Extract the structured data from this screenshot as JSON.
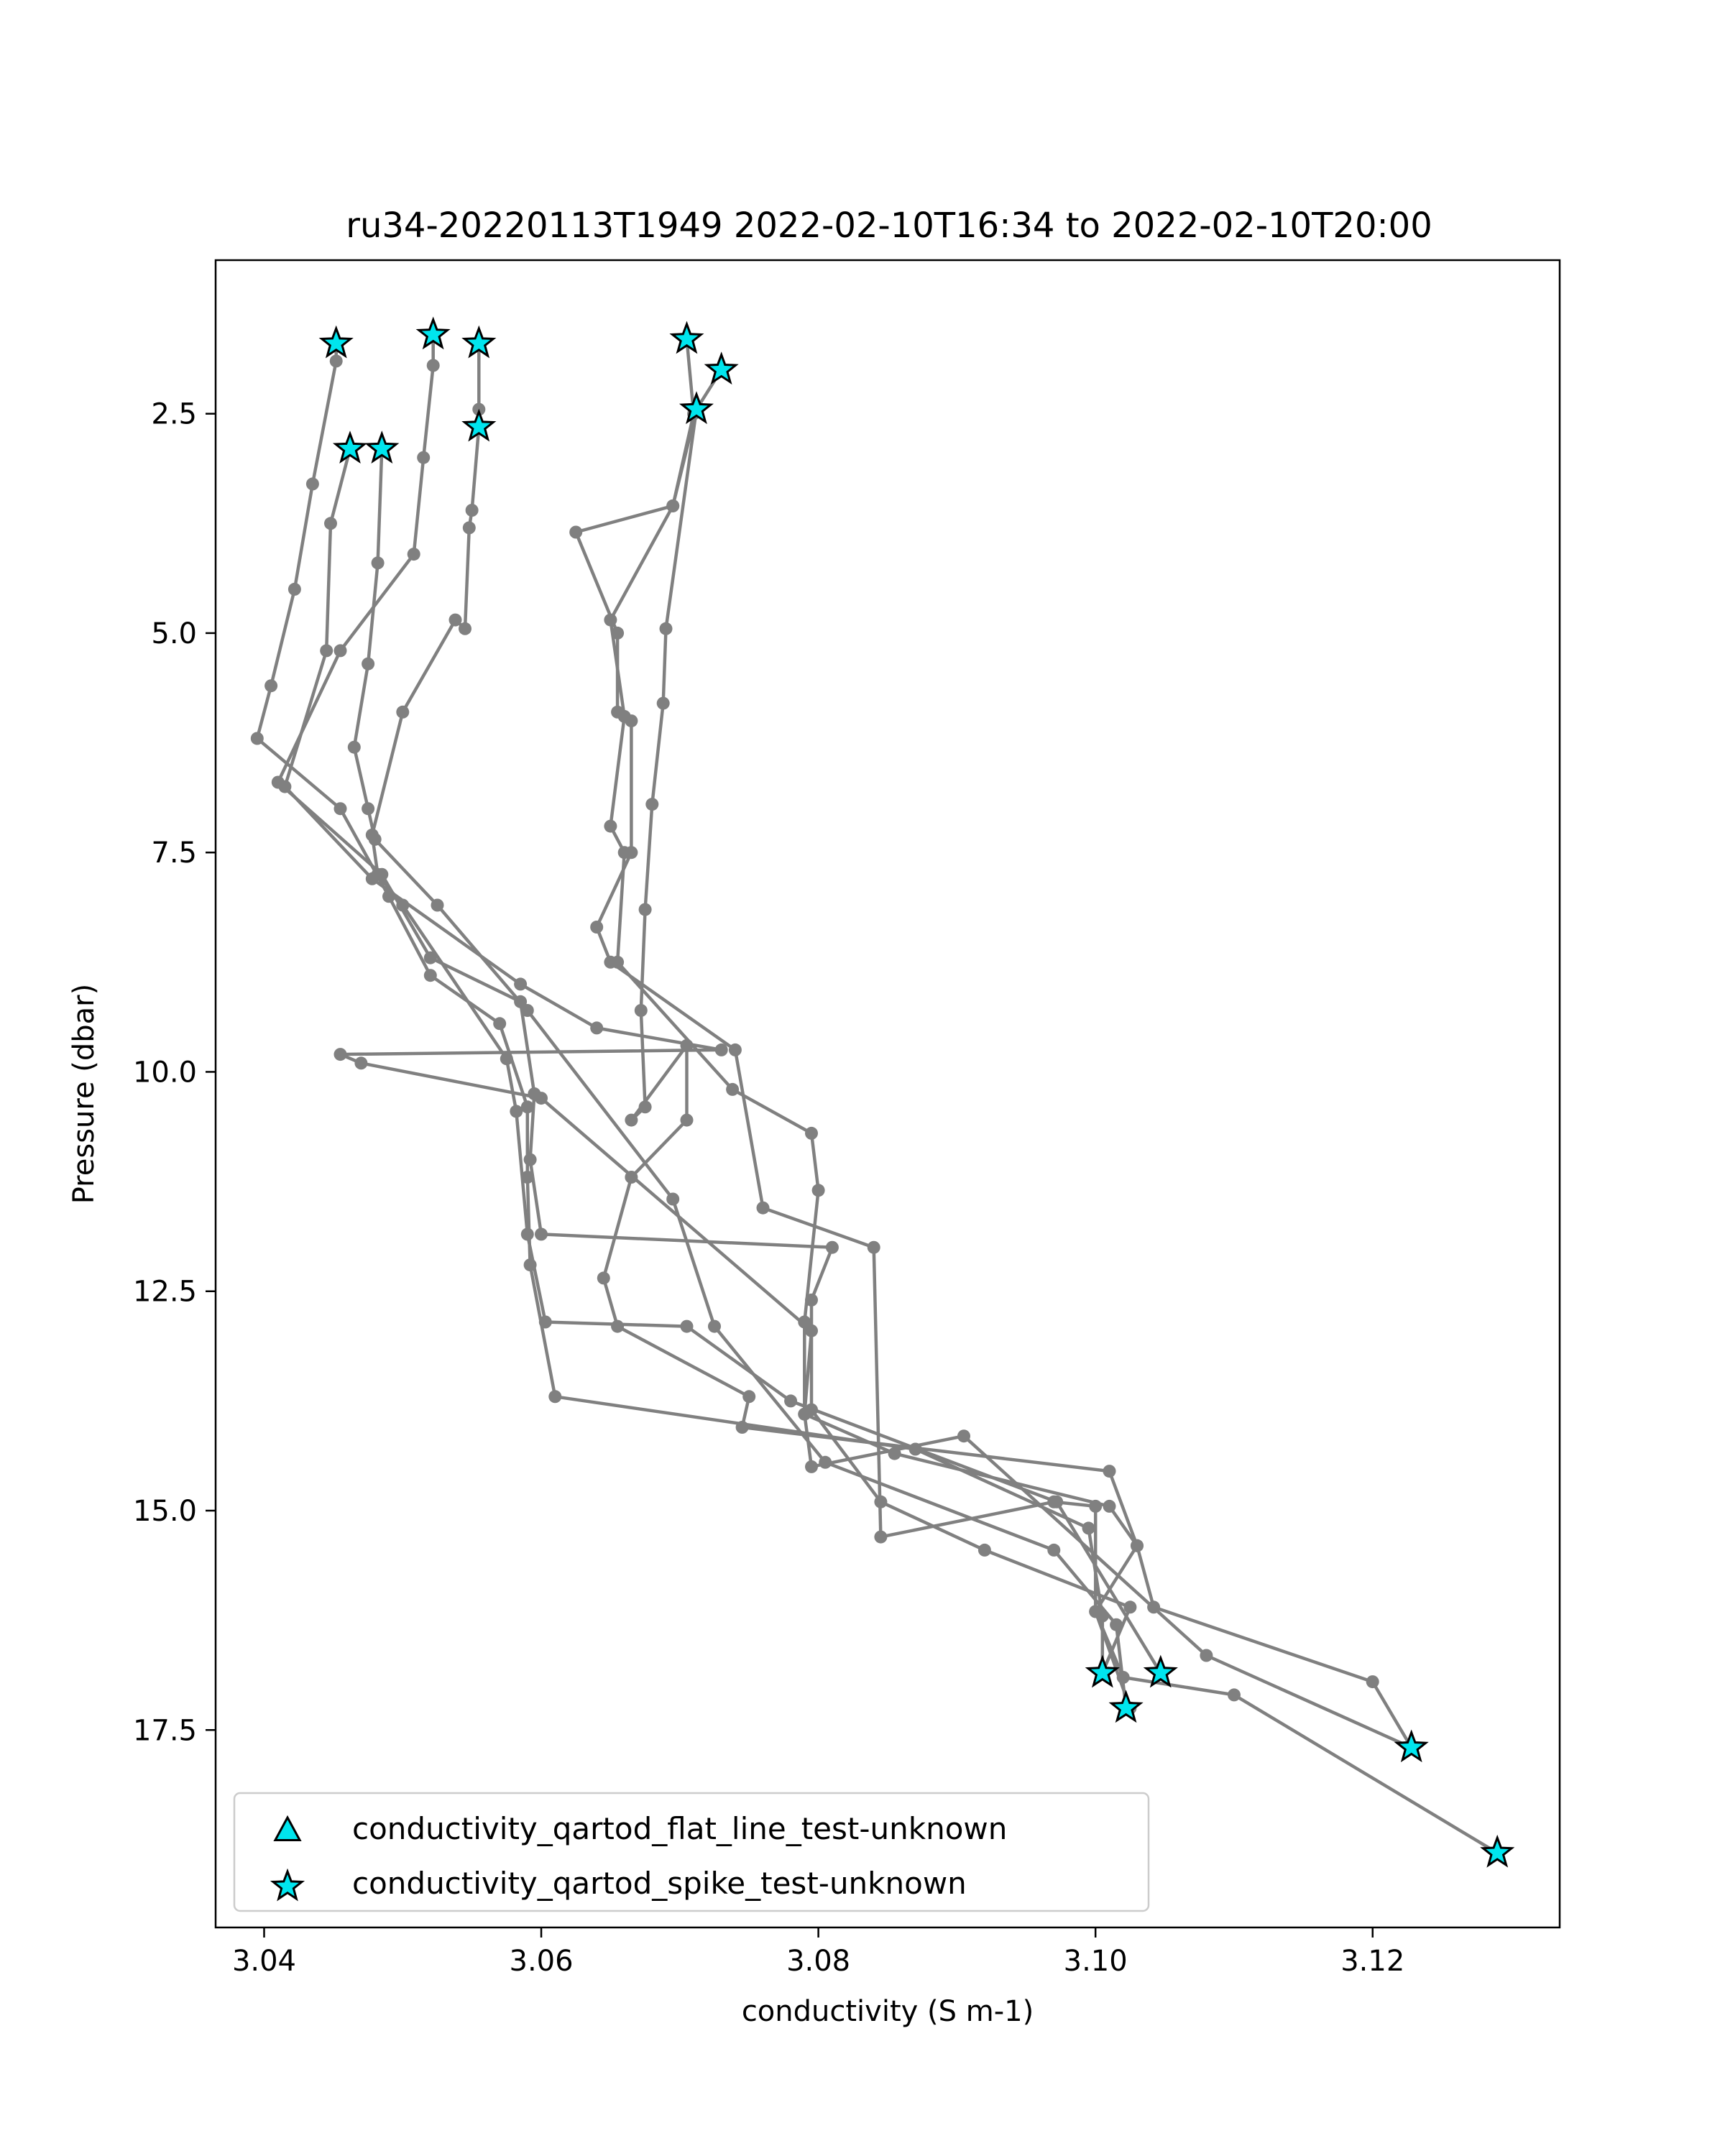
{
  "chart_data": {
    "type": "scatter",
    "title": "ru34-20220113T1949 2022-02-10T16:34 to 2022-02-10T20:00",
    "xlabel": "conductivity (S m-1)",
    "ylabel": "Pressure (dbar)",
    "xlim": [
      3.0365,
      3.1335
    ],
    "ylim": [
      19.75,
      0.75
    ],
    "y_inverted": true,
    "xticks": [
      3.04,
      3.06,
      3.08,
      3.1,
      3.12
    ],
    "xtick_labels": [
      "3.04",
      "3.06",
      "3.08",
      "3.10",
      "3.12"
    ],
    "yticks": [
      2.5,
      5.0,
      7.5,
      10.0,
      12.5,
      15.0,
      17.5
    ],
    "ytick_labels": [
      "2.5",
      "5.0",
      "7.5",
      "10.0",
      "12.5",
      "15.0",
      "17.5"
    ],
    "grid": false,
    "legend_position": "lower-left",
    "colors": {
      "profile": "#808080",
      "flag_fill": "#00e5ee",
      "flag_edge": "#000000"
    },
    "series": [
      {
        "values": [
          [
            3.0452,
            1.7
          ],
          [
            3.0452,
            1.9
          ],
          [
            3.0435,
            3.3
          ],
          [
            3.0422,
            4.5
          ],
          [
            3.0405,
            5.6
          ],
          [
            3.0395,
            6.2
          ],
          [
            3.0455,
            7.0
          ],
          [
            3.049,
            8.0
          ],
          [
            3.052,
            8.9
          ],
          [
            3.057,
            9.45
          ],
          [
            3.059,
            10.4
          ],
          [
            3.059,
            11.2
          ],
          [
            3.0592,
            12.2
          ],
          [
            3.061,
            13.7
          ],
          [
            3.087,
            14.3
          ],
          [
            3.0995,
            15.2
          ],
          [
            3.1005,
            16.2
          ],
          [
            3.1005,
            16.85
          ]
        ]
      },
      {
        "values": [
          [
            3.0522,
            1.6
          ],
          [
            3.0522,
            1.95
          ],
          [
            3.0515,
            3.0
          ],
          [
            3.0508,
            4.1
          ],
          [
            3.0455,
            5.2
          ],
          [
            3.041,
            6.7
          ],
          [
            3.0485,
            7.75
          ],
          [
            3.052,
            8.7
          ],
          [
            3.0585,
            9.2
          ],
          [
            3.0595,
            10.25
          ],
          [
            3.0592,
            11.0
          ],
          [
            3.06,
            11.85
          ],
          [
            3.081,
            12.0
          ],
          [
            3.0795,
            12.6
          ],
          [
            3.0795,
            13.85
          ],
          [
            3.0845,
            14.9
          ],
          [
            3.092,
            15.45
          ],
          [
            3.1025,
            16.1
          ],
          [
            3.1005,
            16.85
          ]
        ]
      },
      {
        "values": [
          [
            3.0555,
            1.7
          ],
          [
            3.0555,
            2.45
          ],
          [
            3.0555,
            2.65
          ],
          [
            3.055,
            3.6
          ],
          [
            3.0548,
            3.8
          ],
          [
            3.0545,
            4.95
          ],
          [
            3.0538,
            4.85
          ],
          [
            3.05,
            5.9
          ],
          [
            3.0478,
            7.3
          ],
          [
            3.0482,
            7.75
          ],
          [
            3.05,
            8.1
          ],
          [
            3.0575,
            9.85
          ],
          [
            3.0582,
            10.45
          ],
          [
            3.059,
            11.85
          ],
          [
            3.0603,
            12.85
          ],
          [
            3.0705,
            12.9
          ],
          [
            3.078,
            13.75
          ],
          [
            3.0972,
            14.9
          ],
          [
            3.1047,
            16.85
          ]
        ]
      },
      {
        "values": [
          [
            3.0462,
            2.9
          ],
          [
            3.0448,
            3.75
          ],
          [
            3.0445,
            5.2
          ],
          [
            3.0415,
            6.75
          ],
          [
            3.0478,
            7.8
          ],
          [
            3.0585,
            9.0
          ],
          [
            3.064,
            9.5
          ],
          [
            3.073,
            9.75
          ],
          [
            3.0455,
            9.8
          ],
          [
            3.047,
            9.9
          ],
          [
            3.06,
            10.3
          ],
          [
            3.0795,
            12.95
          ],
          [
            3.079,
            13.9
          ],
          [
            3.0795,
            14.5
          ],
          [
            3.0905,
            14.15
          ],
          [
            3.108,
            16.65
          ],
          [
            3.1228,
            17.7
          ]
        ]
      },
      {
        "values": [
          [
            3.0485,
            2.9
          ],
          [
            3.0482,
            4.2
          ],
          [
            3.0475,
            5.35
          ],
          [
            3.0465,
            6.3
          ],
          [
            3.0475,
            7.0
          ],
          [
            3.048,
            7.35
          ],
          [
            3.0525,
            8.1
          ],
          [
            3.059,
            9.3
          ],
          [
            3.0695,
            11.45
          ],
          [
            3.0725,
            12.9
          ],
          [
            3.0805,
            14.45
          ],
          [
            3.097,
            15.45
          ],
          [
            3.1015,
            16.3
          ],
          [
            3.1022,
            17.25
          ]
        ]
      },
      {
        "values": [
          [
            3.0705,
            1.65
          ],
          [
            3.071,
            2.5
          ],
          [
            3.0695,
            3.55
          ],
          [
            3.0625,
            3.85
          ],
          [
            3.0655,
            5.0
          ],
          [
            3.0655,
            5.9
          ],
          [
            3.0665,
            6.0
          ],
          [
            3.0665,
            7.5
          ],
          [
            3.064,
            8.35
          ],
          [
            3.065,
            8.75
          ],
          [
            3.074,
            9.75
          ],
          [
            3.076,
            11.55
          ],
          [
            3.084,
            12.0
          ],
          [
            3.0845,
            15.3
          ],
          [
            3.097,
            14.9
          ],
          [
            3.1,
            14.95
          ],
          [
            3.1,
            16.15
          ],
          [
            3.1025,
            17.25
          ]
        ]
      },
      {
        "values": [
          [
            3.073,
            2.0
          ],
          [
            3.0712,
            2.45
          ],
          [
            3.0695,
            3.55
          ],
          [
            3.065,
            4.85
          ],
          [
            3.066,
            5.95
          ],
          [
            3.065,
            7.2
          ],
          [
            3.066,
            7.5
          ],
          [
            3.0655,
            8.75
          ],
          [
            3.0738,
            10.2
          ],
          [
            3.0795,
            10.7
          ],
          [
            3.08,
            11.35
          ],
          [
            3.079,
            12.85
          ],
          [
            3.079,
            13.9
          ],
          [
            3.0855,
            14.35
          ],
          [
            3.101,
            14.95
          ],
          [
            3.103,
            15.4
          ],
          [
            3.1,
            16.15
          ],
          [
            3.102,
            16.9
          ],
          [
            3.11,
            17.1
          ],
          [
            3.129,
            18.9
          ]
        ]
      },
      {
        "values": [
          [
            3.0712,
            2.45
          ],
          [
            3.069,
            4.95
          ],
          [
            3.0688,
            5.8
          ],
          [
            3.068,
            6.95
          ],
          [
            3.0675,
            8.15
          ],
          [
            3.0672,
            9.3
          ],
          [
            3.0675,
            10.4
          ],
          [
            3.0665,
            10.55
          ],
          [
            3.0705,
            9.7
          ],
          [
            3.0705,
            10.55
          ],
          [
            3.0665,
            11.2
          ],
          [
            3.0645,
            12.35
          ],
          [
            3.0655,
            12.9
          ],
          [
            3.075,
            13.7
          ],
          [
            3.0745,
            14.05
          ],
          [
            3.101,
            14.55
          ],
          [
            3.103,
            15.4
          ],
          [
            3.1042,
            16.1
          ],
          [
            3.12,
            16.95
          ],
          [
            3.1228,
            17.7
          ]
        ]
      }
    ],
    "legend": [
      {
        "label": "conductivity_qartod_flat_line_test-unknown",
        "marker": "triangle"
      },
      {
        "label": "conductivity_qartod_spike_test-unknown",
        "marker": "star"
      }
    ],
    "flagged_points": {
      "flat_line": [],
      "spike": [
        [
          3.0452,
          1.7
        ],
        [
          3.0522,
          1.6
        ],
        [
          3.0555,
          1.7
        ],
        [
          3.0705,
          1.65
        ],
        [
          3.073,
          2.0
        ],
        [
          3.0712,
          2.45
        ],
        [
          3.0555,
          2.65
        ],
        [
          3.0462,
          2.9
        ],
        [
          3.0485,
          2.9
        ],
        [
          3.1005,
          16.85
        ],
        [
          3.1047,
          16.85
        ],
        [
          3.1022,
          17.25
        ],
        [
          3.1228,
          17.7
        ],
        [
          3.129,
          18.9
        ]
      ]
    }
  }
}
